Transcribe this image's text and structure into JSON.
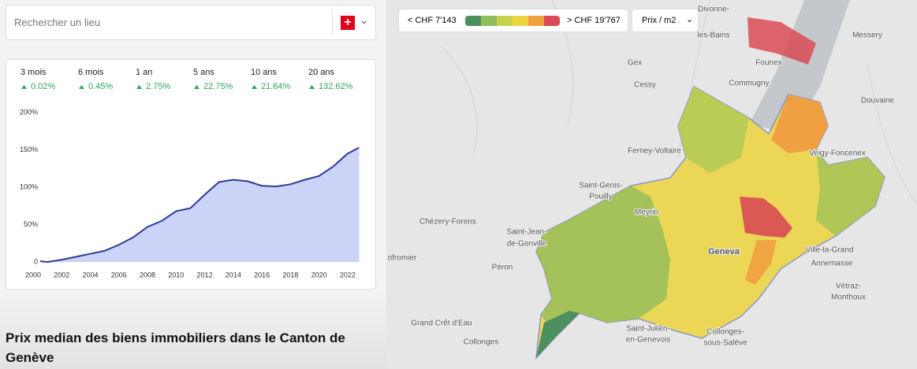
{
  "search": {
    "placeholder": "Rechercher un lieu"
  },
  "stats": [
    {
      "period": "3 mois",
      "change": "0.02%"
    },
    {
      "period": "6 mois",
      "change": "0.45%"
    },
    {
      "period": "1 an",
      "change": "2.75%"
    },
    {
      "period": "5 ans",
      "change": "22.75%"
    },
    {
      "period": "10 ans",
      "change": "21.64%"
    },
    {
      "period": "20 ans",
      "change": "132.62%"
    }
  ],
  "chart_data": {
    "type": "area",
    "x": [
      2000.5,
      2001,
      2002,
      2003,
      2004,
      2005,
      2006,
      2007,
      2008,
      2009,
      2010,
      2011,
      2012,
      2013,
      2014,
      2015,
      2016,
      2017,
      2018,
      2019,
      2020,
      2021,
      2022,
      2022.8
    ],
    "values": [
      1,
      0,
      3,
      7,
      11,
      15,
      23,
      33,
      47,
      55,
      68,
      72,
      90,
      107,
      110,
      108,
      102,
      101,
      104,
      110,
      115,
      128,
      145,
      153
    ],
    "color": "#2b3a96",
    "fill": "#cbd3f6",
    "xlim": [
      2000,
      2023
    ],
    "xticks": [
      2000,
      2002,
      2004,
      2006,
      2008,
      2010,
      2012,
      2014,
      2016,
      2018,
      2020,
      2022
    ],
    "ylim": [
      0,
      200
    ],
    "yticks": [
      0,
      {
        "value": 50,
        "label": "50%"
      },
      {
        "value": 100,
        "label": "100%"
      },
      {
        "value": 150,
        "label": "150%"
      },
      {
        "value": 200,
        "label": "200%"
      }
    ],
    "grid": false
  },
  "caption": "Prix median des biens immobiliers dans le Canton de Genève",
  "map": {
    "legend": {
      "low": "< CHF 7'143",
      "high": "> CHF 19'767",
      "colors": [
        "#4e8f5f",
        "#8fbd5a",
        "#c6d24f",
        "#ecd43d",
        "#f0a040",
        "#d94b55"
      ]
    },
    "metric": "Prix / m2",
    "labels": [
      "Divonne-",
      "les-Bains",
      "Messery",
      "Founex",
      "Gex",
      "Commugny",
      "Cessy",
      "Douvaine",
      "Ferney-Voltaire",
      "Veigy-Foncenex",
      "Saint-Genis-",
      "Pouilly",
      "Chézery-Forens",
      "Saint-Jean-",
      "de-Gonville",
      "Meyrin",
      "Geneva",
      "Ville-la-Grand",
      "Annemasse",
      "Péron",
      "Vétraz-",
      "Monthoux",
      "Grand Crêt d'Eau",
      "Saint-Julien-",
      "en-Genevois",
      "Collonges",
      "Collonges-",
      "sous-Salève",
      "ofromier"
    ]
  }
}
